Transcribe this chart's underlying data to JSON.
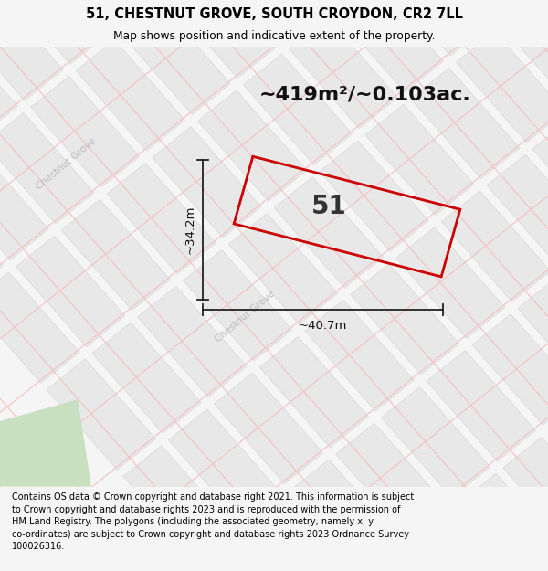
{
  "title_line1": "51, CHESTNUT GROVE, SOUTH CROYDON, CR2 7LL",
  "title_line2": "Map shows position and indicative extent of the property.",
  "area_text": "~419m²/~0.103ac.",
  "property_number": "51",
  "dim_vertical": "~34.2m",
  "dim_horizontal": "~40.7m",
  "footer_text": "Contains OS data © Crown copyright and database right 2021. This information is subject\nto Crown copyright and database rights 2023 and is reproduced with the permission of\nHM Land Registry. The polygons (including the associated geometry, namely x, y\nco-ordinates) are subject to Crown copyright and database rights 2023 Ordnance Survey\n100026316.",
  "bg_color": "#f5f5f5",
  "map_bg": "#ffffff",
  "street_line_color": "#f5c0c0",
  "block_color": "#e8e8e8",
  "block_edge_color": "#d8d8d8",
  "property_edge_color": "#cc0000",
  "green_color": "#c8dfc0",
  "title_bg": "#ffffff",
  "footer_bg": "#ffffff",
  "street_label_color": "#bbbbbb",
  "dim_color": "#222222"
}
